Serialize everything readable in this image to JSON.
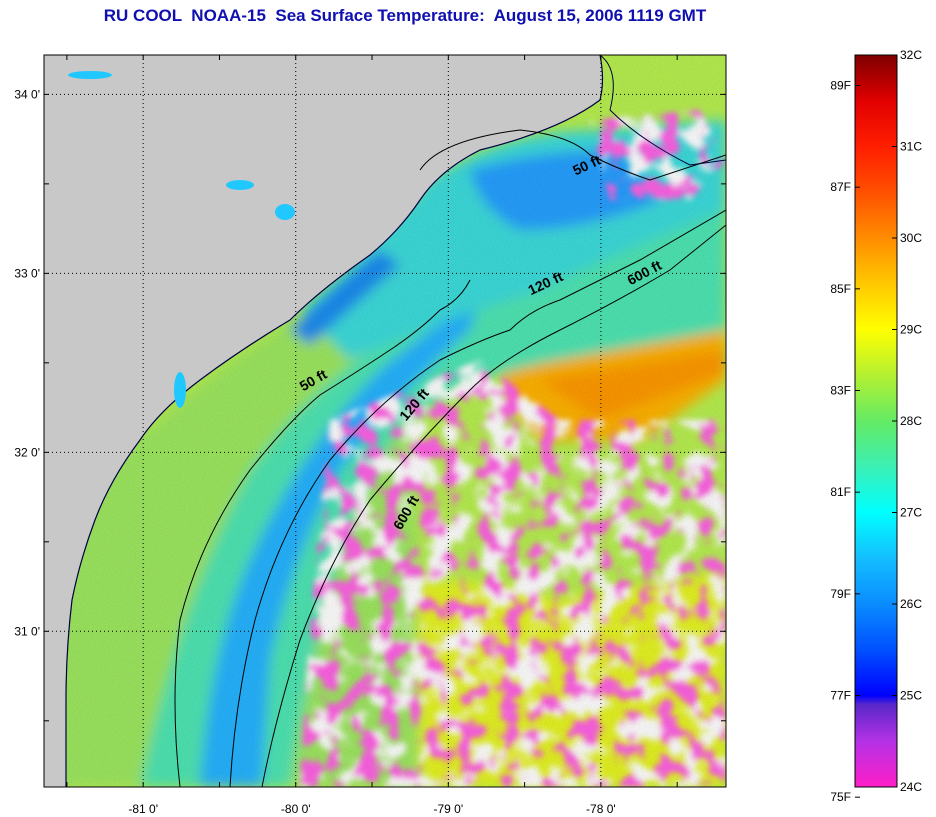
{
  "title": "RU COOL  NOAA-15  Sea Surface Temperature:  August 15, 2006 1119 GMT",
  "map": {
    "lon_range": [
      -81.65,
      -77.18
    ],
    "lat_range": [
      30.13,
      34.22
    ],
    "lat_ticks": [
      {
        "value": 34.0,
        "label": "34 0'"
      },
      {
        "value": 33.0,
        "label": "33 0'"
      },
      {
        "value": 32.0,
        "label": "32 0'"
      },
      {
        "value": 31.0,
        "label": "31 0'"
      }
    ],
    "lon_ticks": [
      {
        "value": -81.0,
        "label": "-81 0'"
      },
      {
        "value": -80.0,
        "label": "-80 0'"
      },
      {
        "value": -79.0,
        "label": "-79 0'"
      },
      {
        "value": -78.0,
        "label": "-78 0'"
      }
    ],
    "grid": "dotted",
    "land_color": "#c8c8c8",
    "cloud_color": "#ffffff",
    "depth_contours": [
      {
        "label": "50 ft"
      },
      {
        "label": "120 ft"
      },
      {
        "label": "600 ft"
      }
    ],
    "contour_labels": [
      {
        "text": "50 ft",
        "lon": -78.08,
        "lat": 33.58
      },
      {
        "text": "120 ft",
        "lon": -78.35,
        "lat": 32.92
      },
      {
        "text": "600 ft",
        "lon": -77.7,
        "lat": 32.98
      },
      {
        "text": "50 ft",
        "lon": -79.87,
        "lat": 32.38
      },
      {
        "text": "120 ft",
        "lon": -79.2,
        "lat": 32.25
      },
      {
        "text": "600 ft",
        "lon": -79.25,
        "lat": 31.65
      }
    ]
  },
  "colorbar": {
    "min_c": 24,
    "max_c": 32,
    "celsius_labels": [
      "32C",
      "31C",
      "30C",
      "29C",
      "28C",
      "27C",
      "26C",
      "25C",
      "24C"
    ],
    "fahrenheit_labels": [
      "89F",
      "87F",
      "85F",
      "83F",
      "81F",
      "79F",
      "77F",
      "75F"
    ],
    "fahrenheit_values": [
      89,
      87,
      85,
      83,
      81,
      79,
      77,
      75
    ],
    "stops": [
      {
        "c": 24.0,
        "color": "#ff1ec8"
      },
      {
        "c": 24.5,
        "color": "#b432e6"
      },
      {
        "c": 24.9,
        "color": "#5a28c8"
      },
      {
        "c": 25.0,
        "color": "#0000ff"
      },
      {
        "c": 25.5,
        "color": "#0050ff"
      },
      {
        "c": 26.0,
        "color": "#0a8cff"
      },
      {
        "c": 26.5,
        "color": "#14beff"
      },
      {
        "c": 27.0,
        "color": "#00ffff"
      },
      {
        "c": 27.5,
        "color": "#3cf0b4"
      },
      {
        "c": 28.0,
        "color": "#64eb64"
      },
      {
        "c": 28.5,
        "color": "#b4f032"
      },
      {
        "c": 29.0,
        "color": "#ffff00"
      },
      {
        "c": 29.5,
        "color": "#ffc800"
      },
      {
        "c": 30.0,
        "color": "#ff8c00"
      },
      {
        "c": 30.5,
        "color": "#ff5000"
      },
      {
        "c": 31.0,
        "color": "#ff1e00"
      },
      {
        "c": 31.5,
        "color": "#e10000"
      },
      {
        "c": 32.0,
        "color": "#7d0000"
      }
    ]
  }
}
